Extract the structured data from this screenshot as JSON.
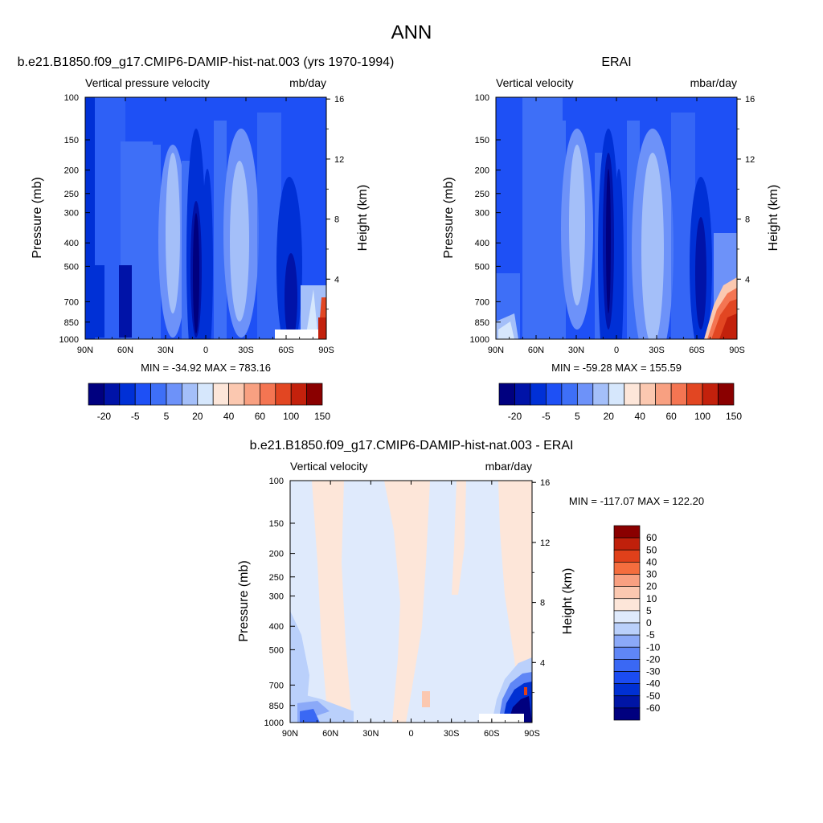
{
  "page": {
    "title": "ANN"
  },
  "colors": {
    "p1_scale": [
      "#00007f",
      "#0013a8",
      "#0030d6",
      "#1e50f5",
      "#3e6ff7",
      "#6d92f9",
      "#a4bff9",
      "#d6e7fc",
      "#fde6d9",
      "#fbc8b0",
      "#f8a081",
      "#f47552",
      "#e24622",
      "#c3210c",
      "#8a0000"
    ],
    "diff_scale": [
      "#00007f",
      "#0015a5",
      "#0030d3",
      "#1b4cf2",
      "#3a68f4",
      "#5f86f6",
      "#8ba9f8",
      "#bad0fb",
      "#dfeafc",
      "#fde6d9",
      "#fbc8b0",
      "#f8a081",
      "#f46d3e",
      "#e0401a",
      "#c0200b",
      "#8a0000"
    ],
    "heavy_white": "#ffffff"
  },
  "chart_data": [
    {
      "id": "test",
      "type": "heatmap",
      "title": "b.e21.B1850.f09_g17.CMIP6-DAMIP-hist-nat.003 (yrs 1970-1994)",
      "subtitle_left": "Vertical pressure velocity",
      "subtitle_right": "mb/day",
      "ylabel": "Pressure (mb)",
      "ylabel_right": "Height (km)",
      "x_ticks": [
        "90N",
        "60N",
        "30N",
        "0",
        "30S",
        "60S",
        "90S"
      ],
      "y_ticks": [
        "100",
        "150",
        "200",
        "250",
        "300",
        "400",
        "500",
        "700",
        "850",
        "1000"
      ],
      "y_right_ticks": [
        "16",
        "12",
        "8",
        "4"
      ],
      "stats": "MIN = -34.92  MAX = 783.16",
      "colorbar_labels": [
        "-20",
        "-5",
        "5",
        "20",
        "40",
        "60",
        "100",
        "150"
      ]
    },
    {
      "id": "ref",
      "type": "heatmap",
      "title": "ERAI",
      "subtitle_left": "Vertical velocity",
      "subtitle_right": "mbar/day",
      "ylabel": "Pressure (mb)",
      "ylabel_right": "Height (km)",
      "x_ticks": [
        "90N",
        "60N",
        "30N",
        "0",
        "30S",
        "60S",
        "90S"
      ],
      "y_ticks": [
        "100",
        "150",
        "200",
        "250",
        "300",
        "400",
        "500",
        "700",
        "850",
        "1000"
      ],
      "y_right_ticks": [
        "16",
        "12",
        "8",
        "4"
      ],
      "stats": "MIN = -59.28  MAX = 155.59",
      "colorbar_labels": [
        "-20",
        "-5",
        "5",
        "20",
        "40",
        "60",
        "100",
        "150"
      ]
    },
    {
      "id": "diff",
      "type": "heatmap",
      "title": "b.e21.B1850.f09_g17.CMIP6-DAMIP-hist-nat.003 - ERAI",
      "subtitle_left": "Vertical velocity",
      "subtitle_right": "mbar/day",
      "ylabel": "Pressure (mb)",
      "ylabel_right": "Height (km)",
      "x_ticks": [
        "90N",
        "60N",
        "30N",
        "0",
        "30S",
        "60S",
        "90S"
      ],
      "y_ticks": [
        "100",
        "150",
        "200",
        "250",
        "300",
        "400",
        "500",
        "700",
        "850",
        "1000"
      ],
      "y_right_ticks": [
        "16",
        "12",
        "8",
        "4"
      ],
      "stats": "MIN = -117.07  MAX = 122.20",
      "colorbar_labels": [
        "60",
        "50",
        "40",
        "30",
        "20",
        "10",
        "5",
        "0",
        "-5",
        "-10",
        "-20",
        "-30",
        "-40",
        "-50",
        "-60"
      ]
    }
  ]
}
